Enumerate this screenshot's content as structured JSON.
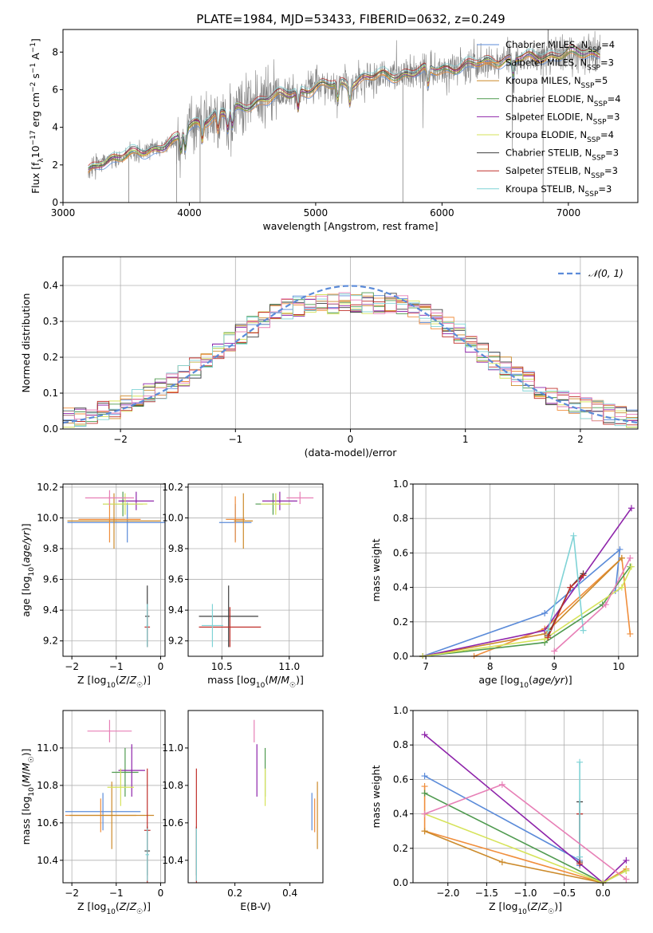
{
  "figure_title": "PLATE=1984, MJD=53433, FIBERID=0632, z=0.249",
  "colors": {
    "chabrier_miles": "#5b8bd9",
    "salpeter_miles": "#f08e3c",
    "kroupa_miles": "#cc8a2a",
    "chabrier_elodie": "#4f9a4f",
    "salpeter_elodie": "#8e24aa",
    "kroupa_elodie": "#d6e35a",
    "chabrier_stelib": "#3f3f3f",
    "salpeter_stelib": "#c0302b",
    "kroupa_stelib": "#7fd3d6",
    "pink": "#e77fb6",
    "data": "#808080",
    "normal": "#5b8bd9"
  },
  "chart_data": [
    {
      "id": "spectrum",
      "type": "line",
      "xlabel": "wavelength [Angstrom, rest frame]",
      "ylabel": "Flux [f_λ 10^-17 erg cm^-2 s^-1 A^-1]",
      "xlim": [
        3000,
        7550
      ],
      "ylim": [
        0,
        9.2
      ],
      "xticks": [
        3000,
        4000,
        5000,
        6000,
        7000
      ],
      "yticks": [
        0,
        2,
        4,
        6,
        8
      ],
      "grid": false,
      "legend": "top-right",
      "continuum": {
        "x": [
          3200,
          3300,
          3500,
          3700,
          3900,
          4000,
          4300,
          4600,
          5000,
          5500,
          6000,
          6500,
          7000,
          7250
        ],
        "y": [
          1.6,
          2.2,
          2.5,
          2.8,
          3.3,
          4.1,
          4.8,
          5.5,
          6.1,
          6.7,
          7.1,
          7.6,
          7.9,
          8.0
        ]
      },
      "series": [
        {
          "name": "Chabrier MILES, N_SSP=4",
          "key": "chabrier_miles"
        },
        {
          "name": "Salpeter MILES, N_SSP=3",
          "key": "salpeter_miles"
        },
        {
          "name": "Kroupa MILES, N_SSP=5",
          "key": "kroupa_miles"
        },
        {
          "name": "Chabrier ELODIE, N_SSP=4",
          "key": "chabrier_elodie"
        },
        {
          "name": "Salpeter ELODIE, N_SSP=3",
          "key": "salpeter_elodie"
        },
        {
          "name": "Kroupa ELODIE, N_SSP=4",
          "key": "kroupa_elodie"
        },
        {
          "name": "Chabrier STELIB, N_SSP=3",
          "key": "chabrier_stelib"
        },
        {
          "name": "Salpeter STELIB, N_SSP=3",
          "key": "salpeter_stelib"
        },
        {
          "name": "Kroupa STELIB, N_SSP=3",
          "key": "kroupa_stelib"
        }
      ]
    },
    {
      "id": "residuals",
      "type": "histogram",
      "xlabel": "(data-model)/error",
      "ylabel": "Normed distribution",
      "xlim": [
        -2.5,
        2.5
      ],
      "ylim": [
        0,
        0.48
      ],
      "xticks": [
        -2,
        -1,
        0,
        1,
        2
      ],
      "yticks": [
        0.0,
        0.1,
        0.2,
        0.3,
        0.4
      ],
      "grid": true,
      "legend": "top-right",
      "normal_label": "𝒩(0, 1)",
      "bin_width": 0.1
    },
    {
      "id": "age_vs_z",
      "type": "errorbar",
      "xlabel": "Z [log10(Z/Z☉)]",
      "ylabel": "age [log10(age/yr)]",
      "xlim": [
        -2.2,
        0.1
      ],
      "ylim": [
        9.1,
        10.22
      ],
      "xticks": [
        -2,
        -1,
        0
      ],
      "yticks": [
        9.2,
        9.4,
        9.6,
        9.8,
        10.0,
        10.2
      ],
      "grid": true,
      "points": [
        {
          "c": "chabrier_miles",
          "x": -0.75,
          "xerr": 1.35,
          "y": 9.97,
          "yerr": 0.13
        },
        {
          "c": "salpeter_miles",
          "x": -1.15,
          "xerr": 0.7,
          "y": 9.99,
          "yerr": 0.15
        },
        {
          "c": "kroupa_miles",
          "x": -1.05,
          "xerr": 1.05,
          "y": 9.98,
          "yerr": 0.18
        },
        {
          "c": "chabrier_elodie",
          "x": -0.85,
          "xerr": 0.45,
          "y": 10.09,
          "yerr": 0.08
        },
        {
          "c": "salpeter_elodie",
          "x": -0.55,
          "xerr": 0.4,
          "y": 10.11,
          "yerr": 0.06
        },
        {
          "c": "kroupa_elodie",
          "x": -0.8,
          "xerr": 0.5,
          "y": 10.09,
          "yerr": 0.07
        },
        {
          "c": "chabrier_stelib",
          "x": -0.3,
          "xerr": 0.05,
          "y": 9.36,
          "yerr": 0.2
        },
        {
          "c": "salpeter_stelib",
          "x": -0.3,
          "xerr": 0.06,
          "y": 9.29,
          "yerr": 0.13
        },
        {
          "c": "kroupa_stelib",
          "x": -0.3,
          "xerr": 0.02,
          "y": 9.3,
          "yerr": 0.14
        },
        {
          "c": "pink",
          "x": -1.15,
          "xerr": 0.55,
          "y": 10.13,
          "yerr": 0.05
        }
      ]
    },
    {
      "id": "age_vs_mass",
      "type": "errorbar",
      "xlabel": "mass [log10(M/M☉)]",
      "ylabel": "",
      "xlim": [
        10.25,
        11.25
      ],
      "ylim": [
        9.1,
        10.22
      ],
      "xticks": [
        10.5,
        11.0
      ],
      "yticks": [
        9.2,
        9.4,
        9.6,
        9.8,
        10.0,
        10.2
      ],
      "grid": true,
      "points": [
        {
          "c": "chabrier_miles",
          "x": 10.6,
          "xerr": 0.12,
          "y": 9.97,
          "yerr": 0.12
        },
        {
          "c": "salpeter_miles",
          "x": 10.6,
          "xerr": 0.07,
          "y": 9.99,
          "yerr": 0.15
        },
        {
          "c": "kroupa_miles",
          "x": 10.66,
          "xerr": 0.07,
          "y": 9.98,
          "yerr": 0.18
        },
        {
          "c": "chabrier_elodie",
          "x": 10.88,
          "xerr": 0.13,
          "y": 10.09,
          "yerr": 0.07
        },
        {
          "c": "salpeter_elodie",
          "x": 10.93,
          "xerr": 0.13,
          "y": 10.11,
          "yerr": 0.06
        },
        {
          "c": "kroupa_elodie",
          "x": 10.9,
          "xerr": 0.11,
          "y": 10.09,
          "yerr": 0.07
        },
        {
          "c": "chabrier_stelib",
          "x": 10.55,
          "xerr": 0.22,
          "y": 9.36,
          "yerr": 0.2
        },
        {
          "c": "salpeter_stelib",
          "x": 10.56,
          "xerr": 0.23,
          "y": 9.29,
          "yerr": 0.13
        },
        {
          "c": "kroupa_stelib",
          "x": 10.43,
          "xerr": 0.08,
          "y": 9.3,
          "yerr": 0.14
        },
        {
          "c": "pink",
          "x": 11.08,
          "xerr": 0.1,
          "y": 10.13,
          "yerr": 0.04
        }
      ]
    },
    {
      "id": "massweight_vs_age",
      "type": "line",
      "xlabel": "age [log10(age/yr)]",
      "ylabel": "mass weight",
      "xlim": [
        6.8,
        10.3
      ],
      "ylim": [
        0,
        1.0
      ],
      "xticks": [
        7,
        8,
        9,
        10
      ],
      "yticks": [
        0.0,
        0.2,
        0.4,
        0.6,
        0.8,
        1.0
      ],
      "grid": true,
      "series": [
        {
          "c": "chabrier_miles",
          "x": [
            6.95,
            8.85,
            10.02,
            9.95
          ],
          "y": [
            0.0,
            0.25,
            0.62,
            0.38
          ]
        },
        {
          "c": "salpeter_miles",
          "x": [
            7.75,
            8.85,
            10.05,
            10.18
          ],
          "y": [
            0.0,
            0.16,
            0.57,
            0.13
          ]
        },
        {
          "c": "kroupa_miles",
          "x": [
            6.95,
            8.85,
            10.05
          ],
          "y": [
            0.0,
            0.13,
            0.57
          ]
        },
        {
          "c": "chabrier_elodie",
          "x": [
            6.95,
            8.85,
            9.75,
            10.18
          ],
          "y": [
            0.0,
            0.08,
            0.3,
            0.52
          ]
        },
        {
          "c": "salpeter_elodie",
          "x": [
            6.95,
            8.85,
            10.2
          ],
          "y": [
            0.0,
            0.15,
            0.86
          ]
        },
        {
          "c": "kroupa_elodie",
          "x": [
            6.95,
            8.85,
            10.05,
            10.2
          ],
          "y": [
            0.0,
            0.1,
            0.4,
            0.52
          ]
        },
        {
          "c": "chabrier_stelib",
          "x": [
            8.9,
            9.25,
            9.45
          ],
          "y": [
            0.12,
            0.4,
            0.48
          ]
        },
        {
          "c": "salpeter_stelib",
          "x": [
            8.9,
            9.25,
            9.45
          ],
          "y": [
            0.11,
            0.4,
            0.47
          ]
        },
        {
          "c": "kroupa_stelib",
          "x": [
            8.9,
            9.3,
            9.45
          ],
          "y": [
            0.15,
            0.7,
            0.15
          ]
        },
        {
          "c": "pink",
          "x": [
            9.0,
            9.8,
            10.18
          ],
          "y": [
            0.03,
            0.3,
            0.57
          ]
        }
      ]
    },
    {
      "id": "mass_vs_z",
      "type": "errorbar",
      "xlabel": "Z [log10(Z/Z☉)]",
      "ylabel": "mass [log10(M/M☉)]",
      "xlim": [
        -2.2,
        0.1
      ],
      "ylim": [
        10.28,
        11.2
      ],
      "xticks": [
        -2,
        -1,
        0
      ],
      "yticks": [
        10.4,
        10.6,
        10.8,
        11.0
      ],
      "grid": true,
      "points": [
        {
          "c": "chabrier_miles",
          "x": -1.3,
          "xerr": 0.85,
          "y": 10.66,
          "yerr": 0.1
        },
        {
          "c": "salpeter_miles",
          "x": -1.35,
          "xerr": 0.8,
          "y": 10.64,
          "yerr": 0.09
        },
        {
          "c": "kroupa_miles",
          "x": -1.1,
          "xerr": 0.95,
          "y": 10.64,
          "yerr": 0.18
        },
        {
          "c": "chabrier_elodie",
          "x": -0.8,
          "xerr": 0.3,
          "y": 10.87,
          "yerr": 0.13
        },
        {
          "c": "salpeter_elodie",
          "x": -0.65,
          "xerr": 0.3,
          "y": 10.88,
          "yerr": 0.14
        },
        {
          "c": "kroupa_elodie",
          "x": -0.9,
          "xerr": 0.3,
          "y": 10.79,
          "yerr": 0.1
        },
        {
          "c": "chabrier_stelib",
          "x": -0.3,
          "xerr": 0.06,
          "y": 10.45,
          "yerr": 0.13
        },
        {
          "c": "salpeter_stelib",
          "x": -0.3,
          "xerr": 0.07,
          "y": 10.56,
          "yerr": 0.33
        },
        {
          "c": "kroupa_stelib",
          "x": -0.3,
          "xerr": 0.04,
          "y": 10.43,
          "yerr": 0.14
        },
        {
          "c": "pink",
          "x": -1.15,
          "xerr": 0.5,
          "y": 11.09,
          "yerr": 0.06
        }
      ]
    },
    {
      "id": "mass_vs_ebv",
      "type": "errorbar",
      "xlabel": "E(B-V)",
      "ylabel": "",
      "xlim": [
        0.03,
        0.52
      ],
      "ylim": [
        10.28,
        11.2
      ],
      "xticks": [
        0.2,
        0.4
      ],
      "yticks": [
        10.4,
        10.6,
        10.8,
        11.0
      ],
      "grid": false,
      "points": [
        {
          "c": "chabrier_miles",
          "x": 0.48,
          "xerr": 0,
          "y": 10.66,
          "yerr": 0.1
        },
        {
          "c": "salpeter_miles",
          "x": 0.49,
          "xerr": 0,
          "y": 10.64,
          "yerr": 0.09
        },
        {
          "c": "kroupa_miles",
          "x": 0.5,
          "xerr": 0,
          "y": 10.64,
          "yerr": 0.18
        },
        {
          "c": "chabrier_elodie",
          "x": 0.31,
          "xerr": 0,
          "y": 10.87,
          "yerr": 0.13
        },
        {
          "c": "salpeter_elodie",
          "x": 0.28,
          "xerr": 0,
          "y": 10.88,
          "yerr": 0.14
        },
        {
          "c": "kroupa_elodie",
          "x": 0.31,
          "xerr": 0,
          "y": 10.79,
          "yerr": 0.1
        },
        {
          "c": "chabrier_stelib",
          "x": 0.06,
          "xerr": 0,
          "y": 10.45,
          "yerr": 0.13
        },
        {
          "c": "salpeter_stelib",
          "x": 0.06,
          "xerr": 0,
          "y": 10.56,
          "yerr": 0.33
        },
        {
          "c": "kroupa_stelib",
          "x": 0.06,
          "xerr": 0,
          "y": 10.43,
          "yerr": 0.14
        },
        {
          "c": "pink",
          "x": 0.27,
          "xerr": 0,
          "y": 11.09,
          "yerr": 0.06
        }
      ]
    },
    {
      "id": "massweight_vs_z",
      "type": "line",
      "xlabel": "Z [log10(Z/Z☉)]",
      "ylabel": "mass weight",
      "xlim": [
        -2.45,
        0.45
      ],
      "ylim": [
        0,
        1.0
      ],
      "xticks": [
        -2.0,
        -1.5,
        -1.0,
        -0.5,
        0.0
      ],
      "yticks": [
        0.0,
        0.2,
        0.4,
        0.6,
        0.8,
        1.0
      ],
      "grid": true,
      "series": [
        {
          "c": "chabrier_miles",
          "x": [
            -2.3,
            -0.3,
            -0.3
          ],
          "y": [
            0.62,
            0.13,
            0.1
          ]
        },
        {
          "c": "salpeter_miles",
          "x": [
            -2.3,
            -2.3,
            0.0,
            0.3
          ],
          "y": [
            0.56,
            0.3,
            0.0,
            0.08
          ]
        },
        {
          "c": "kroupa_miles",
          "x": [
            -2.3,
            -1.3,
            0.0
          ],
          "y": [
            0.3,
            0.12,
            0.0
          ]
        },
        {
          "c": "chabrier_elodie",
          "x": [
            -2.3,
            0.0,
            0.3
          ],
          "y": [
            0.52,
            0.0,
            0.07
          ]
        },
        {
          "c": "salpeter_elodie",
          "x": [
            -2.3,
            0.0,
            0.3
          ],
          "y": [
            0.86,
            0.0,
            0.13
          ]
        },
        {
          "c": "kroupa_elodie",
          "x": [
            -2.3,
            0.0,
            0.3
          ],
          "y": [
            0.4,
            0.0,
            0.07
          ]
        },
        {
          "c": "chabrier_stelib",
          "x": [
            -0.3,
            -0.3,
            -0.3
          ],
          "y": [
            0.47,
            0.4,
            0.12
          ]
        },
        {
          "c": "salpeter_stelib",
          "x": [
            -0.3,
            -0.3
          ],
          "y": [
            0.4,
            0.11
          ]
        },
        {
          "c": "kroupa_stelib",
          "x": [
            -0.3,
            -0.3
          ],
          "y": [
            0.7,
            0.15
          ]
        },
        {
          "c": "pink",
          "x": [
            -2.3,
            -1.3,
            0.3
          ],
          "y": [
            0.4,
            0.57,
            0.02
          ]
        }
      ]
    }
  ]
}
